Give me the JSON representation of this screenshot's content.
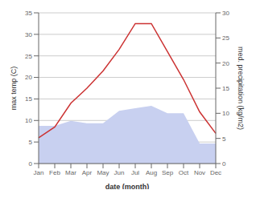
{
  "chart_data": {
    "type": "line",
    "xlabel": "date (month)",
    "ylabel": "max temp (C)",
    "y2label": "med. precipitation (kg/m2)",
    "categories": [
      "Jan",
      "Feb",
      "Mar",
      "Apr",
      "May",
      "Jun",
      "Jul",
      "Aug",
      "Sep",
      "Oct",
      "Nov",
      "Dec"
    ],
    "series": [
      {
        "type": "area",
        "axis": "y2",
        "color": "#c8d0f0",
        "values": [
          7.5,
          7.5,
          8.5,
          8.0,
          8.0,
          10.5,
          11.0,
          11.5,
          10.0,
          10.0,
          4.0,
          4.0
        ]
      },
      {
        "type": "line",
        "color": "#cc3333",
        "values": [
          6.0,
          8.5,
          14.0,
          17.5,
          21.5,
          26.5,
          32.5,
          32.5,
          26.0,
          19.5,
          12.0,
          7.0
        ]
      }
    ],
    "ylim": [
      0,
      35
    ],
    "yticks": [
      0,
      5,
      10,
      15,
      20,
      25,
      30,
      35
    ],
    "y2lim": [
      0,
      30
    ],
    "y2ticks": [
      0,
      5,
      10,
      15,
      20,
      25,
      30
    ],
    "grid": true
  }
}
